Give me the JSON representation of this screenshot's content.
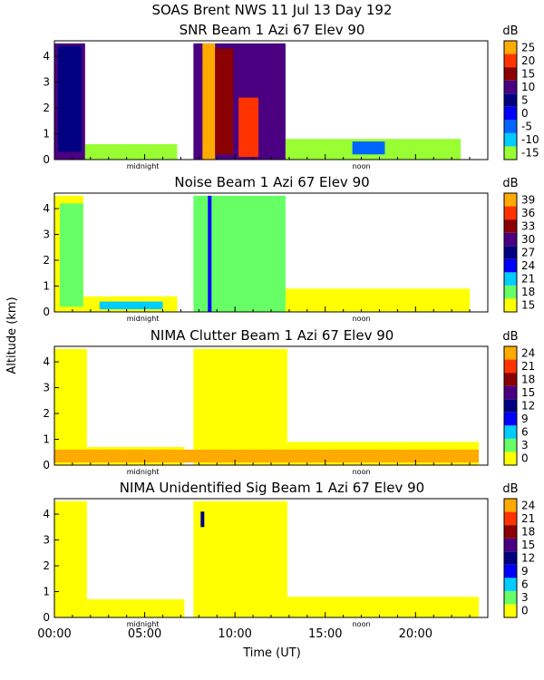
{
  "figure_title": "SOAS Brent NWS   11 Jul 13 Day 192",
  "ylabel": "Altitude (km)",
  "xlabel": "Time (UT)",
  "x_tick_labels": [
    "00:00",
    "05:00",
    "10:00",
    "15:00",
    "20:00"
  ],
  "midnight_label": "midnight",
  "noon_label": "noon",
  "unit_label": "dB",
  "colors": {
    "yellow": "#ffff00",
    "lightyellow": "#ffff66",
    "orange": "#ffaa00",
    "red": "#ff3300",
    "darkred": "#8b0000",
    "purple": "#4b0082",
    "navy": "#000080",
    "blue": "#0000ff",
    "cyan": "#00ccff",
    "aqua": "#33cccc",
    "green": "#66ff66",
    "lightgreen": "#99ff33"
  },
  "chart_data": [
    {
      "type": "heatmap",
      "title": "SNR Beam 1 Azi   67 Elev 90",
      "xlabel": "Time (UT)",
      "ylabel": "Altitude (km)",
      "xlim": [
        0,
        24
      ],
      "ylim": [
        0,
        4.6
      ],
      "y_ticks": [
        0,
        1,
        2,
        3,
        4
      ],
      "x_ticks": [
        0,
        5,
        10,
        15,
        20
      ],
      "colorbar": {
        "label": "dB",
        "ticks": [
          -15,
          -10,
          -5,
          0,
          5,
          10,
          15,
          20,
          25
        ],
        "colors": [
          "#99ff33",
          "#00ccff",
          "#0066ff",
          "#0000ff",
          "#000080",
          "#4b0082",
          "#8b0000",
          "#ff3300",
          "#ffaa00"
        ]
      },
      "regions": [
        {
          "t0": 0.0,
          "t1": 1.7,
          "z0": 0,
          "z1": 4.5,
          "dB": 10
        },
        {
          "t0": 0.2,
          "t1": 1.5,
          "z0": 0.3,
          "z1": 4.4,
          "dB": 5
        },
        {
          "t0": 1.7,
          "t1": 6.8,
          "z0": 0,
          "z1": 0.6,
          "dB": -15
        },
        {
          "t0": 7.7,
          "t1": 12.8,
          "z0": 0,
          "z1": 4.5,
          "dB": 10
        },
        {
          "t0": 8.2,
          "t1": 8.9,
          "z0": 0,
          "z1": 4.5,
          "dB": 25
        },
        {
          "t0": 8.9,
          "t1": 9.9,
          "z0": 0.2,
          "z1": 4.3,
          "dB": 15
        },
        {
          "t0": 10.2,
          "t1": 11.3,
          "z0": 0.1,
          "z1": 2.4,
          "dB": 20
        },
        {
          "t0": 12.8,
          "t1": 22.5,
          "z0": 0,
          "z1": 0.8,
          "dB": -15
        },
        {
          "t0": 16.5,
          "t1": 18.3,
          "z0": 0.2,
          "z1": 0.7,
          "dB": -5
        }
      ]
    },
    {
      "type": "heatmap",
      "title": "Noise Beam 1 Azi   67 Elev 90",
      "xlabel": "Time (UT)",
      "ylabel": "Altitude (km)",
      "xlim": [
        0,
        24
      ],
      "ylim": [
        0,
        4.6
      ],
      "y_ticks": [
        0,
        1,
        2,
        3,
        4
      ],
      "x_ticks": [
        0,
        5,
        10,
        15,
        20
      ],
      "colorbar": {
        "label": "dB",
        "ticks": [
          15,
          18,
          21,
          24,
          27,
          30,
          33,
          36,
          39
        ],
        "colors": [
          "#ffff00",
          "#66ff66",
          "#00ccff",
          "#0000ff",
          "#000080",
          "#4b0082",
          "#8b0000",
          "#ff3300",
          "#ffaa00"
        ]
      },
      "regions": [
        {
          "t0": 0.0,
          "t1": 1.6,
          "z0": 0,
          "z1": 4.5,
          "dB": 15
        },
        {
          "t0": 0.3,
          "t1": 1.6,
          "z0": 0.2,
          "z1": 4.2,
          "dB": 18
        },
        {
          "t0": 1.6,
          "t1": 6.8,
          "z0": 0,
          "z1": 0.6,
          "dB": 15
        },
        {
          "t0": 2.5,
          "t1": 6.0,
          "z0": 0.1,
          "z1": 0.4,
          "dB": 21
        },
        {
          "t0": 7.7,
          "t1": 12.8,
          "z0": 0,
          "z1": 4.5,
          "dB": 18
        },
        {
          "t0": 8.5,
          "t1": 8.7,
          "z0": 0,
          "z1": 4.5,
          "dB": 24
        },
        {
          "t0": 12.8,
          "t1": 23.0,
          "z0": 0,
          "z1": 0.9,
          "dB": 15
        }
      ]
    },
    {
      "type": "heatmap",
      "title": "NIMA Clutter Beam 1 Azi   67 Elev 90",
      "xlabel": "Time (UT)",
      "ylabel": "Altitude (km)",
      "xlim": [
        0,
        24
      ],
      "ylim": [
        0,
        4.6
      ],
      "y_ticks": [
        0,
        1,
        2,
        3,
        4
      ],
      "x_ticks": [
        0,
        5,
        10,
        15,
        20
      ],
      "colorbar": {
        "label": "dB",
        "ticks": [
          0,
          3,
          6,
          9,
          12,
          15,
          18,
          21,
          24
        ],
        "colors": [
          "#ffff00",
          "#66ff66",
          "#00ccff",
          "#0000ff",
          "#000080",
          "#4b0082",
          "#8b0000",
          "#ff3300",
          "#ffaa00"
        ]
      },
      "regions": [
        {
          "t0": 0.0,
          "t1": 1.8,
          "z0": 0,
          "z1": 4.5,
          "dB": 0
        },
        {
          "t0": 1.8,
          "t1": 7.2,
          "z0": 0,
          "z1": 0.7,
          "dB": 0
        },
        {
          "t0": 7.7,
          "t1": 12.9,
          "z0": 0,
          "z1": 4.5,
          "dB": 0
        },
        {
          "t0": 12.9,
          "t1": 23.5,
          "z0": 0,
          "z1": 0.9,
          "dB": 0
        },
        {
          "t0": 0.0,
          "t1": 23.5,
          "z0": 0.1,
          "z1": 0.6,
          "dB": 24
        }
      ]
    },
    {
      "type": "heatmap",
      "title": "NIMA Unidentified Sig Beam 1 Azi   67 Elev 90",
      "xlabel": "Time (UT)",
      "ylabel": "Altitude (km)",
      "xlim": [
        0,
        24
      ],
      "ylim": [
        0,
        4.6
      ],
      "y_ticks": [
        0,
        1,
        2,
        3,
        4
      ],
      "x_ticks": [
        0,
        5,
        10,
        15,
        20
      ],
      "colorbar": {
        "label": "dB",
        "ticks": [
          0,
          3,
          6,
          9,
          12,
          15,
          18,
          21,
          24
        ],
        "colors": [
          "#ffff00",
          "#66ff66",
          "#00ccff",
          "#0000ff",
          "#000080",
          "#4b0082",
          "#8b0000",
          "#ff3300",
          "#ffaa00"
        ]
      },
      "regions": [
        {
          "t0": 0.0,
          "t1": 1.8,
          "z0": 0,
          "z1": 4.5,
          "dB": 0
        },
        {
          "t0": 1.8,
          "t1": 7.2,
          "z0": 0,
          "z1": 0.7,
          "dB": 0
        },
        {
          "t0": 7.7,
          "t1": 12.9,
          "z0": 0,
          "z1": 4.5,
          "dB": 0
        },
        {
          "t0": 12.9,
          "t1": 23.5,
          "z0": 0,
          "z1": 0.8,
          "dB": 0
        },
        {
          "t0": 8.1,
          "t1": 8.3,
          "z0": 3.5,
          "z1": 4.1,
          "dB": 12
        }
      ]
    }
  ]
}
